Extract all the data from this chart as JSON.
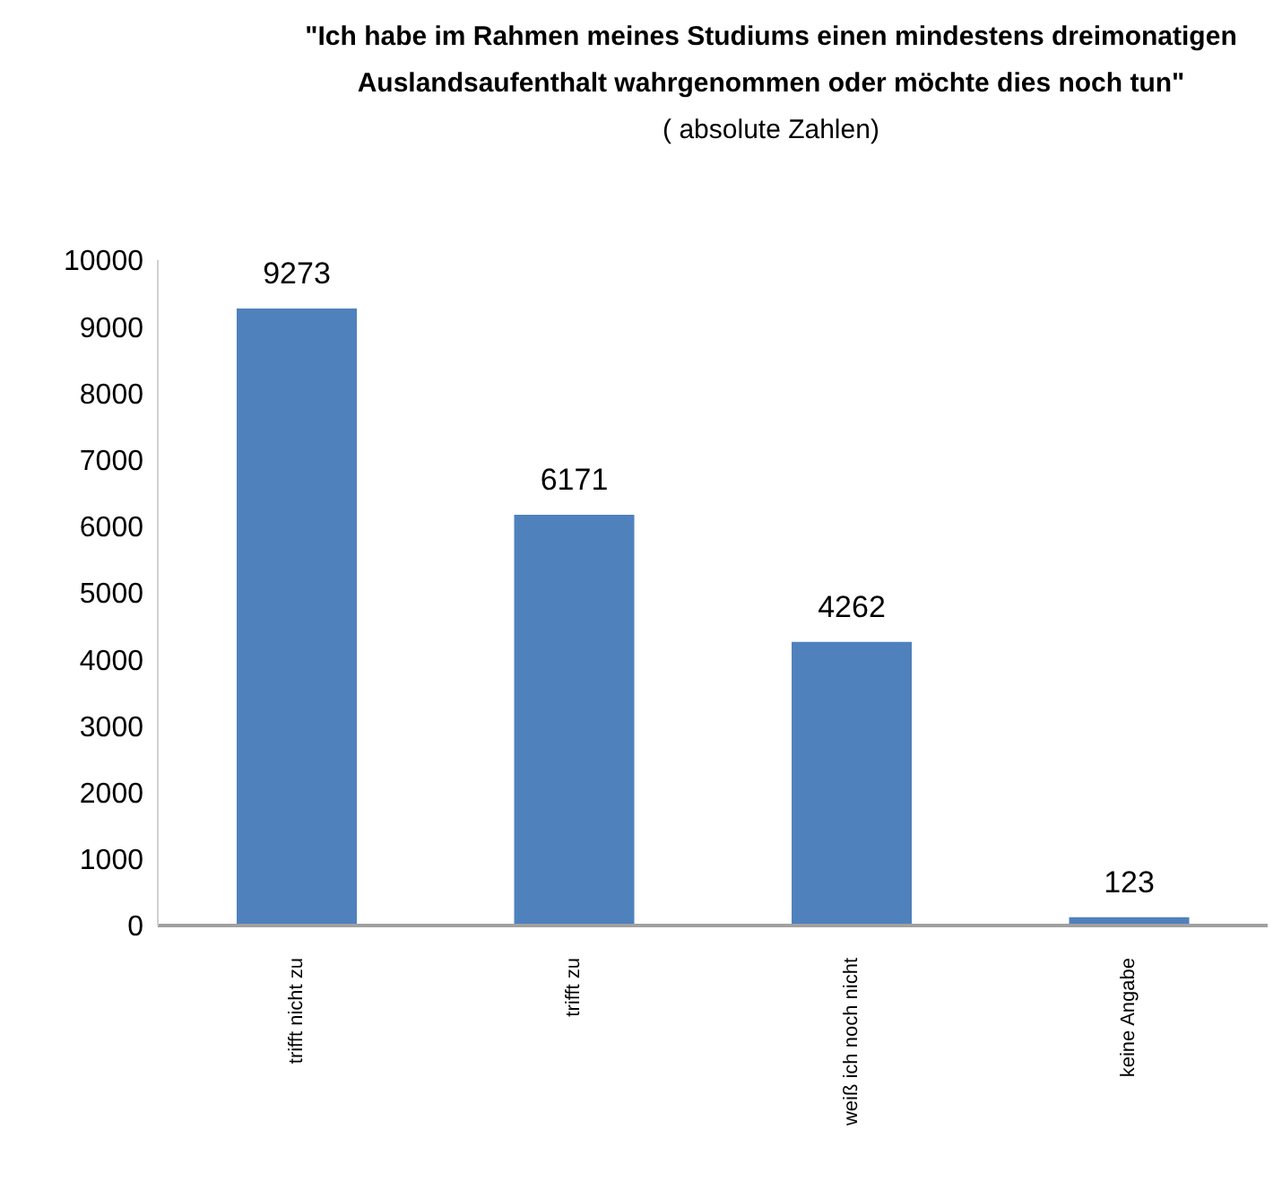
{
  "chart_data": {
    "type": "bar",
    "title": "\"Ich habe im Rahmen meines Studiums einen mindestens dreimonatigen Auslandsaufenthalt wahrgenommen oder möchte dies noch tun\"",
    "subtitle": "( absolute Zahlen)",
    "categories": [
      "trifft nicht zu",
      "trifft zu",
      "weiß ich noch nicht",
      "keine Angabe"
    ],
    "values": [
      9273,
      6171,
      4262,
      123
    ],
    "color": "#4f81bd",
    "ylim": [
      0,
      10000
    ],
    "yticks": [
      0,
      1000,
      2000,
      3000,
      4000,
      5000,
      6000,
      7000,
      8000,
      9000,
      10000
    ],
    "grid": false,
    "legend": false,
    "data_labels": true
  }
}
